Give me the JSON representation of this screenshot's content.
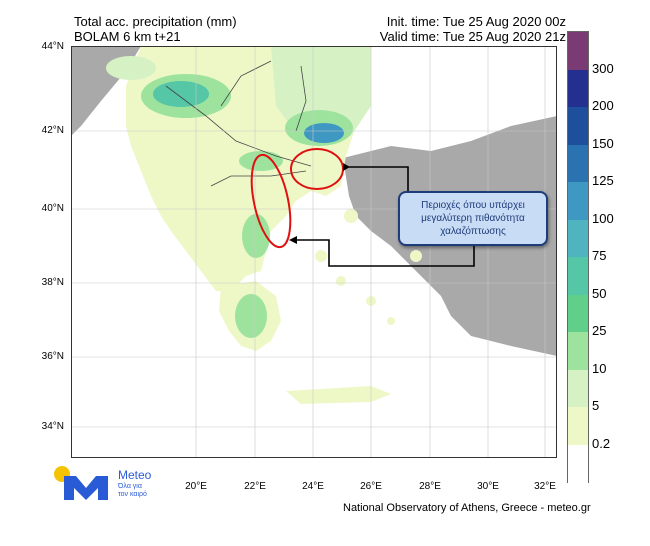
{
  "header": {
    "title": "Total acc. precipitation (mm)",
    "model": "BOLAM 6 km t+21",
    "init_time": "Init. time: Tue 25 Aug 2020 00z",
    "valid_time": "Valid time: Tue 25 Aug 2020 21z"
  },
  "axes": {
    "lat_labels": [
      "44°N",
      "42°N",
      "40°N",
      "38°N",
      "36°N",
      "34°N"
    ],
    "lon_labels": [
      "20°E",
      "22°E",
      "24°E",
      "26°E",
      "28°E",
      "30°E",
      "32°E"
    ]
  },
  "colorbar": {
    "labels": [
      "300",
      "200",
      "150",
      "125",
      "100",
      "75",
      "50",
      "25",
      "10",
      "5",
      "0.2"
    ],
    "colors": [
      "#7a3a74",
      "#23308f",
      "#1d4f9c",
      "#2a72b0",
      "#3f98c2",
      "#4fb4bf",
      "#55c6a6",
      "#5fcf8a",
      "#9de39e",
      "#d6f2c4",
      "#eef8c7",
      "#ffffff"
    ]
  },
  "callout": {
    "text": "Περιοχές όπου υπάρχει μεγαλύτερη πιθανότητα χαλαζόπτωσης"
  },
  "logo": {
    "word": "Meteo",
    "tagline_1": "Όλα για",
    "tagline_2": "τον καιρό"
  },
  "footer": {
    "credit": "National Observatory of Athens, Greece - meteo.gr"
  },
  "colors": {
    "sea": "#ffffff",
    "land_outside": "#a9a9a9",
    "light_precip": "#eef8c7",
    "logo_blue": "#2a5bd7",
    "logo_yellow": "#f5c400",
    "highlight_red": "#e01010",
    "callout_border": "#1f3c7a"
  }
}
